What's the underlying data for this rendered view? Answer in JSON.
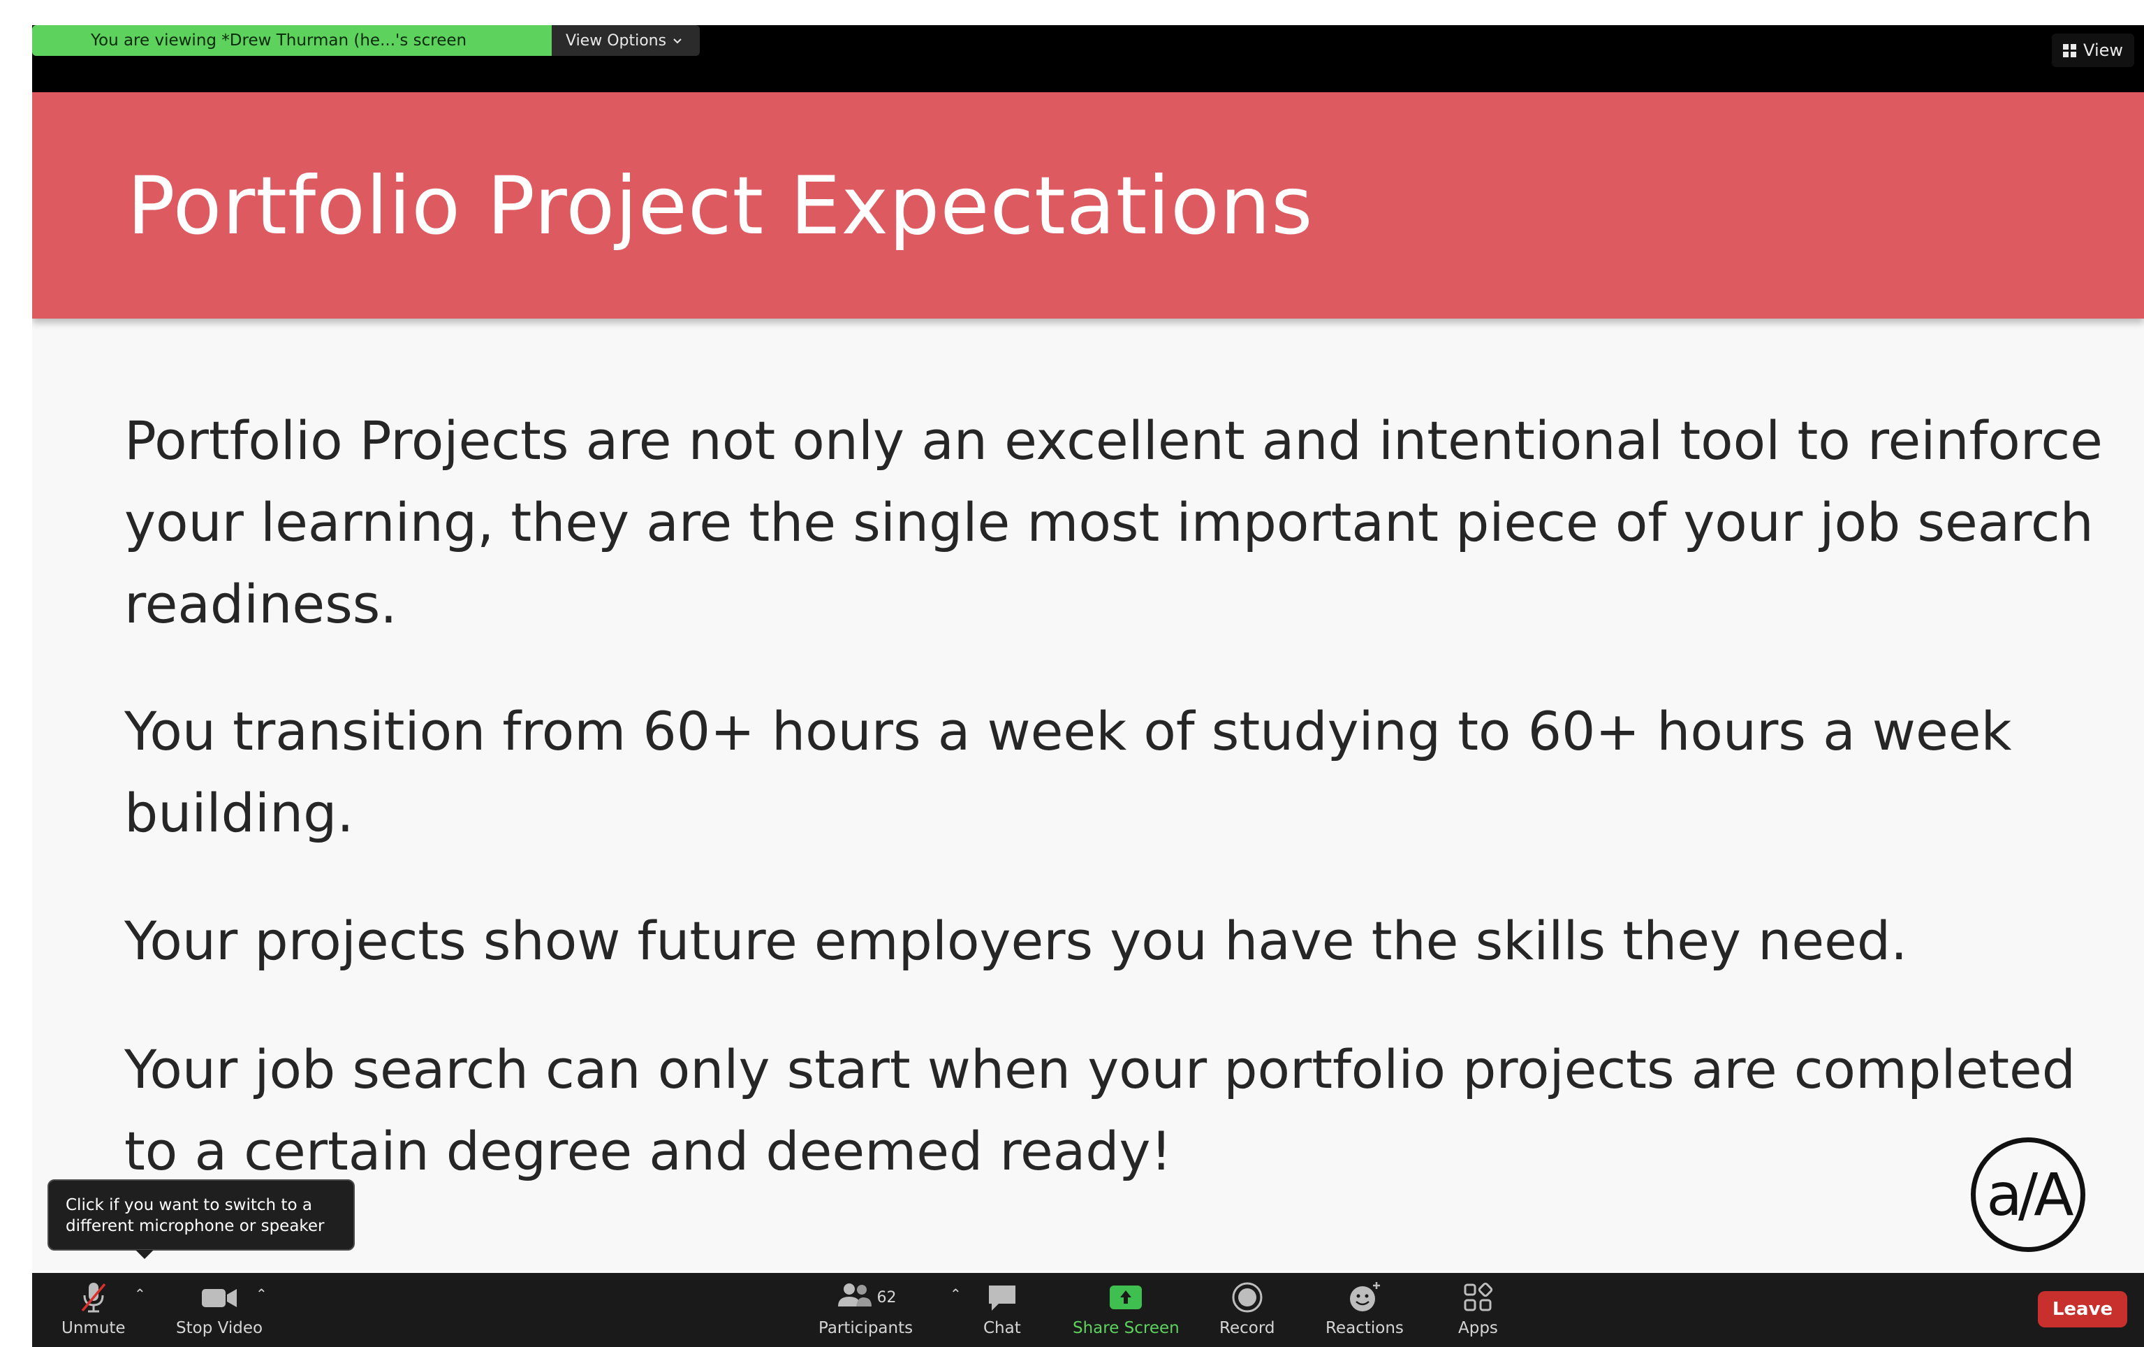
{
  "banner": {
    "viewing_text": "You are viewing *Drew Thurman (he...'s screen",
    "view_options_label": "View Options"
  },
  "view_button_label": "View",
  "slide": {
    "title": "Portfolio Project Expectations",
    "paragraphs": [
      "Portfolio Projects are not only an excellent and intentional tool to reinforce your learning, they are the single most important piece of your job search readiness.",
      "You transition from 60+ hours a week of studying to 60+ hours a week building.",
      "Your projects show future employers you have the skills they need.",
      "Your job search can only start when your portfolio projects are completed to a certain degree and deemed ready!"
    ],
    "logo_text": "a/A"
  },
  "tooltip_text": "Click if you want to switch to a different microphone or speaker",
  "toolbar": {
    "unmute_label": "Unmute",
    "stop_video_label": "Stop Video",
    "participants_label": "Participants",
    "participants_count": "62",
    "chat_label": "Chat",
    "share_screen_label": "Share Screen",
    "record_label": "Record",
    "reactions_label": "Reactions",
    "apps_label": "Apps",
    "leave_label": "Leave"
  },
  "colors": {
    "slide_header": "#dd5a60",
    "banner_green": "#5dd35d",
    "leave_red": "#c7302c",
    "share_green": "#3fbf4f"
  }
}
